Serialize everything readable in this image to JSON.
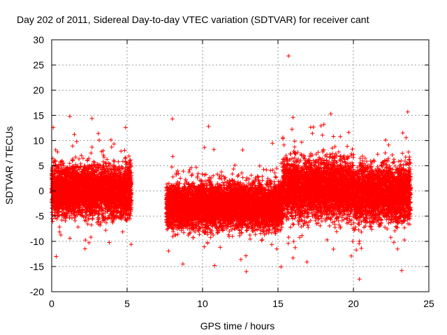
{
  "chart_data": {
    "type": "scatter",
    "title": "Day 202 of 2011, Sidereal Day-to-day VTEC variation (SDTVAR) for receiver cant",
    "xlabel": "GPS time / hours",
    "ylabel": "SDTVAR / TECUs",
    "xlim": [
      0,
      25
    ],
    "ylim": [
      -20,
      30
    ],
    "xticks": [
      0,
      5,
      10,
      15,
      20,
      25
    ],
    "yticks": [
      -20,
      -15,
      -10,
      -5,
      0,
      5,
      10,
      15,
      20,
      25,
      30
    ],
    "grid": true,
    "marker": "+",
    "color": "#ff0000",
    "series": [
      {
        "name": "SDTVAR",
        "segments": [
          {
            "x_range": [
              0.0,
              5.3
            ],
            "center": 0.0,
            "spread": 4.5
          },
          {
            "x_range": [
              7.6,
              15.3
            ],
            "center": -3.0,
            "spread": 4.0
          },
          {
            "x_range": [
              15.3,
              20.0
            ],
            "center": 0.5,
            "spread": 5.0
          },
          {
            "x_range": [
              20.0,
              23.8
            ],
            "center": -0.5,
            "spread": 4.8
          }
        ],
        "outliers": [
          {
            "x": 15.7,
            "y": 26.8
          },
          {
            "x": 23.6,
            "y": 15.7
          },
          {
            "x": 18.5,
            "y": 15.3
          },
          {
            "x": 1.2,
            "y": 14.8
          },
          {
            "x": 8.0,
            "y": 14.3
          },
          {
            "x": 16.0,
            "y": 14.6
          },
          {
            "x": 20.4,
            "y": -17.5
          },
          {
            "x": 12.9,
            "y": -16.0
          },
          {
            "x": 23.2,
            "y": -15.8
          },
          {
            "x": 8.7,
            "y": -14.5
          },
          {
            "x": 10.8,
            "y": -14.8
          },
          {
            "x": 0.3,
            "y": -13.0
          },
          {
            "x": 16.0,
            "y": -13.3
          },
          {
            "x": 10.4,
            "y": 12.8
          },
          {
            "x": 4.9,
            "y": 12.6
          },
          {
            "x": 0.1,
            "y": 12.6
          }
        ]
      }
    ]
  }
}
